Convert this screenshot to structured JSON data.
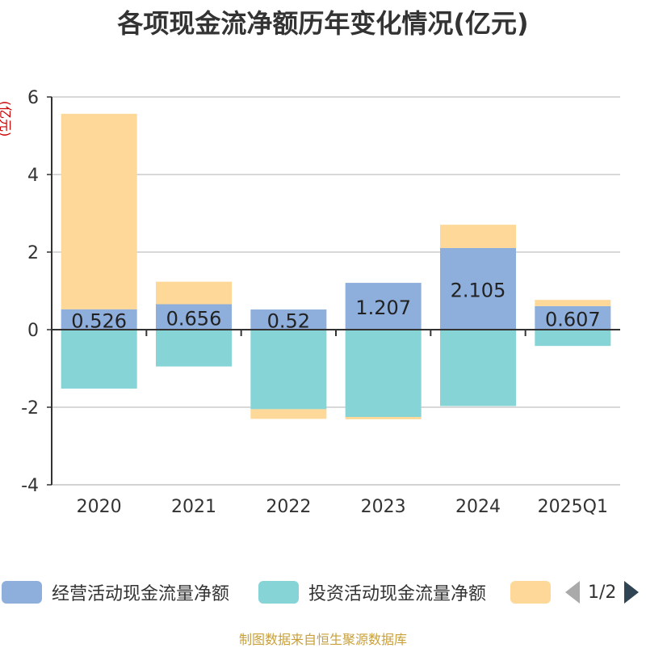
{
  "title": "各项现金流净额历年变化情况(亿元)",
  "source": "制图数据来自恒生聚源数据库",
  "legend": {
    "items": [
      {
        "label": "经营活动现金流量净额",
        "color": "#8eaedb"
      },
      {
        "label": "投资活动现金流量净额",
        "color": "#86d4d6"
      },
      {
        "label": "",
        "color": "#fdd898"
      }
    ],
    "page": "1/2"
  },
  "chart_data": {
    "type": "bar",
    "stacked": true,
    "categories": [
      "2020",
      "2021",
      "2022",
      "2023",
      "2024",
      "2025Q1"
    ],
    "ylabel": "(亿元)",
    "ylim": [
      -4,
      6
    ],
    "yticks": [
      -4,
      -2,
      0,
      2,
      4,
      6
    ],
    "grid": true,
    "series": [
      {
        "name": "经营活动现金流量净额",
        "color": "#8eaedb",
        "values": [
          0.526,
          0.656,
          0.52,
          1.207,
          2.105,
          0.607
        ],
        "labels": [
          "0.526",
          "0.656",
          "0.52",
          "1.207",
          "2.105",
          "0.607"
        ]
      },
      {
        "name": "投资活动现金流量净额",
        "color": "#86d4d6",
        "values": [
          -1.52,
          -0.95,
          -2.05,
          -2.25,
          -1.97,
          -0.42
        ]
      },
      {
        "color": "#fdd898",
        "values": [
          5.04,
          0.58,
          -0.25,
          -0.06,
          0.6,
          0.16
        ]
      }
    ]
  }
}
